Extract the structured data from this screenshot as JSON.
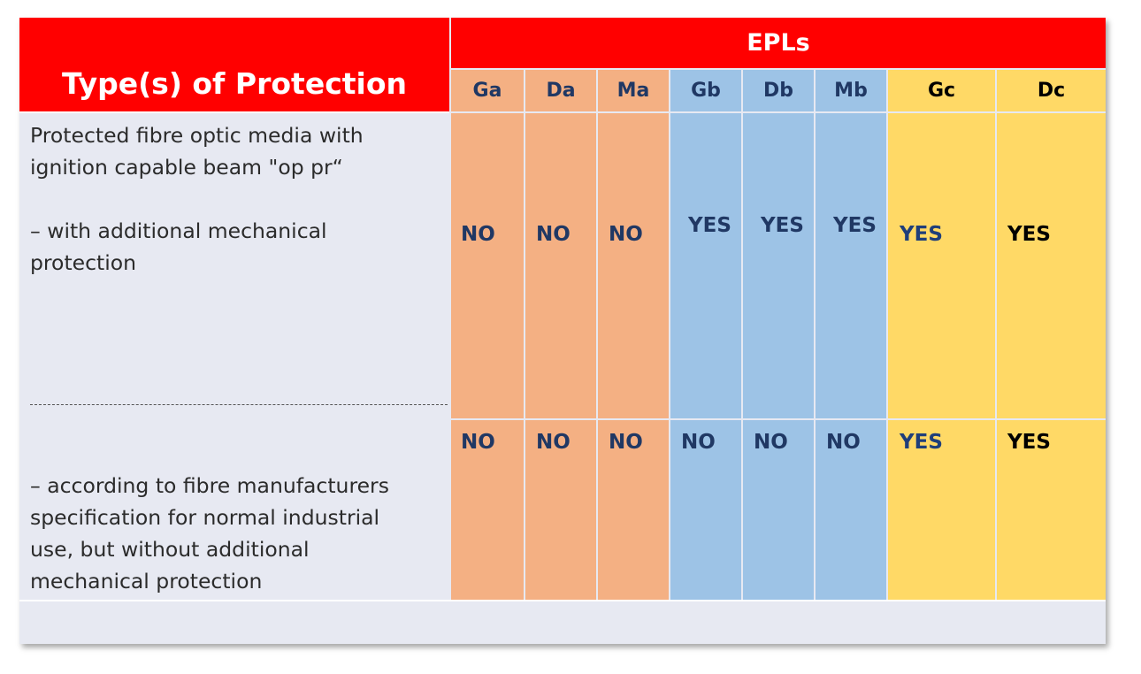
{
  "header": {
    "type_of_protection": "Type(s) of Protection",
    "epls": "EPLs"
  },
  "columns": [
    {
      "label": "Ga",
      "group": "orange"
    },
    {
      "label": "Da",
      "group": "orange"
    },
    {
      "label": "Ma",
      "group": "orange"
    },
    {
      "label": "Gb",
      "group": "blue"
    },
    {
      "label": "Db",
      "group": "blue"
    },
    {
      "label": "Mb",
      "group": "blue"
    },
    {
      "label": "Gc",
      "group": "yellow"
    },
    {
      "label": "Dc",
      "group": "yellow"
    }
  ],
  "rows": [
    {
      "description_1": "Protected fibre optic media with\nignition capable beam \"op pr“",
      "description_2": "– with additional mechanical\nprotection",
      "values": [
        "NO",
        "NO",
        "NO",
        "YES",
        "YES",
        "YES",
        "YES",
        "YES"
      ]
    },
    {
      "separator": "-----------------------------------------------------",
      "description": "– according to fibre manufacturers\nspecification for normal industrial\nuse, but without additional\nmechanical protection",
      "values": [
        "NO",
        "NO",
        "NO",
        "NO",
        "NO",
        "NO",
        "YES",
        "YES"
      ]
    }
  ],
  "colors": {
    "header_red": "#ff0000",
    "orange": "#f4b083",
    "blue": "#9dc3e6",
    "yellow": "#ffd966",
    "background": "#e7e9f2",
    "value_text": "#1f3e7a"
  }
}
